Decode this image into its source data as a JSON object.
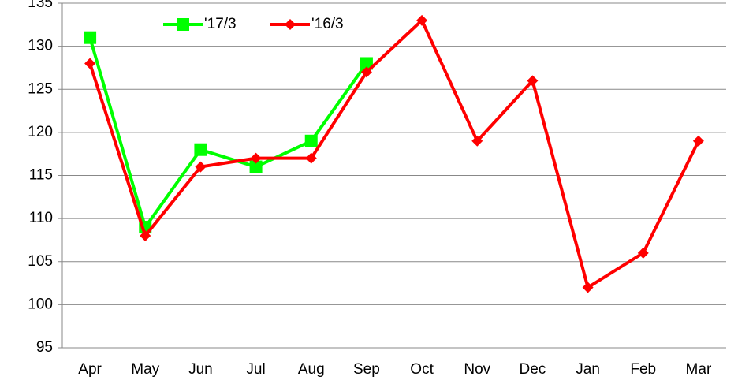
{
  "chart_data": {
    "type": "line",
    "categories": [
      "Apr",
      "May",
      "Jun",
      "Jul",
      "Aug",
      "Sep",
      "Oct",
      "Nov",
      "Dec",
      "Jan",
      "Feb",
      "Mar"
    ],
    "series": [
      {
        "name": "'17/3",
        "color": "#00ff00",
        "marker": "square",
        "values": [
          131,
          109,
          118,
          116,
          119,
          128,
          null,
          null,
          null,
          null,
          null,
          null
        ]
      },
      {
        "name": "'16/3",
        "color": "#ff0000",
        "marker": "diamond",
        "values": [
          128,
          108,
          116,
          117,
          117,
          127,
          133,
          119,
          126,
          102,
          106,
          119
        ]
      }
    ],
    "ylim": [
      95,
      135
    ],
    "yticks": [
      95,
      100,
      105,
      110,
      115,
      120,
      125,
      130,
      135
    ],
    "grid": true,
    "legend": "top"
  }
}
